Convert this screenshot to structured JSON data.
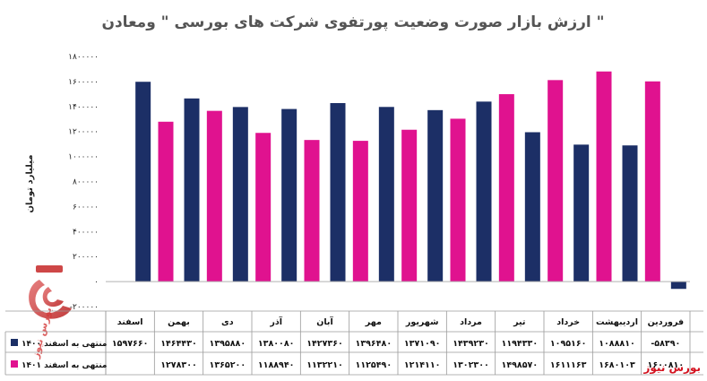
{
  "chart_data": {
    "type": "bar",
    "title": "ارزش بازار صورت وضعیت پورتفوی شرکت های بورسی \" ومعادن \"",
    "ylabel": "میلیارد تومان",
    "ylim": [
      -200000,
      1800000
    ],
    "y_ticks": [
      "۱۸۰۰۰۰۰",
      "۱۶۰۰۰۰۰",
      "۱۴۰۰۰۰۰",
      "۱۲۰۰۰۰۰",
      "۱۰۰۰۰۰۰",
      "۸۰۰۰۰۰",
      "۶۰۰۰۰۰",
      "۴۰۰۰۰۰",
      "۲۰۰۰۰۰",
      "۰",
      "-۲۰۰۰۰۰"
    ],
    "grid": false,
    "legend": "table-left",
    "categories": [
      "فروردین",
      "اردیبهشت",
      "خرداد",
      "تیر",
      "مرداد",
      "شهریور",
      "مهر",
      "آبان",
      "آذر",
      "دی",
      "بهمن",
      "اسفند"
    ],
    "series": [
      {
        "name": "منتهی به اسفند ۱۴۰۰",
        "color": "#1c2f66",
        "values": [
          -58390,
          1088810,
          1095160,
          1194330,
          1439230,
          1371090,
          1396480,
          1427360,
          1380080,
          1395880,
          1464430,
          1597660
        ],
        "labels": [
          "-۵۸۳۹۰",
          "۱۰۸۸۸۱۰",
          "۱۰۹۵۱۶۰",
          "۱۱۹۴۳۳۰",
          "۱۴۳۹۲۳۰",
          "۱۳۷۱۰۹۰",
          "۱۳۹۶۴۸۰",
          "۱۴۲۷۳۶۰",
          "۱۳۸۰۰۸۰",
          "۱۳۹۵۸۸۰",
          "۱۴۶۴۴۳۰",
          "۱۵۹۷۶۶۰"
        ]
      },
      {
        "name": "منتهی به اسفند ۱۴۰۱",
        "color": "#e0128f",
        "values": [
          1600810,
          1680103,
          1611163,
          1498570,
          1302300,
          1214110,
          1125490,
          1132210,
          1188940,
          1365200,
          1278300,
          null
        ],
        "labels": [
          "۱۶۰۰۸۱۰",
          "۱۶۸۰۱۰۳",
          "۱۶۱۱۱۶۳",
          "۱۴۹۸۵۷۰",
          "۱۳۰۲۳۰۰",
          "۱۲۱۴۱۱۰",
          "۱۱۲۵۴۹۰",
          "۱۱۳۲۲۱۰",
          "۱۱۸۸۹۴۰",
          "۱۳۶۵۲۰۰",
          "۱۲۷۸۳۰۰",
          ""
        ]
      }
    ]
  },
  "watermark": "بورس نیوز",
  "footer_brand": "بورس نیوز",
  "colors": {
    "brand": "#d4121f",
    "watermark": "#d43a3a"
  }
}
